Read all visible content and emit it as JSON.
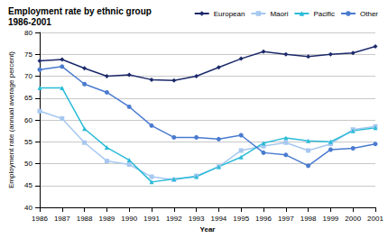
{
  "chart_data": {
    "type": "line",
    "title": "Employment rate by ethnic group",
    "subtitle": "1986-2001",
    "x_label": "Year",
    "y_label": "Employment rate (annual average percent)",
    "categories": [
      "1986",
      "1987",
      "1988",
      "1989",
      "1990",
      "1991",
      "1992",
      "1993",
      "1994",
      "1995",
      "1996",
      "1997",
      "1998",
      "1999",
      "2000",
      "2001"
    ],
    "series": [
      {
        "name": "European",
        "color": "#1C2A6B",
        "marker": "diamond",
        "values": [
          73.5,
          73.8,
          71.8,
          70,
          70.3,
          69.2,
          69,
          70,
          72,
          74,
          75.6,
          75,
          74.5,
          75,
          75.3,
          76.8
        ]
      },
      {
        "name": "Maori",
        "color": "#A6C8F0",
        "marker": "square",
        "values": [
          62,
          60.3,
          54.8,
          50.6,
          49.8,
          47,
          46.3,
          47.2,
          49.3,
          53,
          54,
          54.8,
          53,
          54.5,
          57.8,
          58.5
        ]
      },
      {
        "name": "Pacific",
        "color": "#2ABBD8",
        "marker": "triangle",
        "values": [
          67.3,
          67.3,
          58,
          53.7,
          50.8,
          45.8,
          46.5,
          47,
          49.3,
          51.5,
          54.7,
          55.9,
          55.2,
          55,
          57.5,
          58.2
        ]
      },
      {
        "name": "Other",
        "color": "#4A7BD0",
        "marker": "circle",
        "values": [
          71.5,
          72.2,
          68.2,
          66.3,
          63,
          58.7,
          56,
          56,
          55.6,
          56.5,
          52.5,
          52,
          49.5,
          53.2,
          53.5,
          54.5
        ]
      }
    ],
    "ylim": [
      40,
      80
    ],
    "yticks": [
      40,
      45,
      50,
      55,
      60,
      65,
      70,
      75,
      80
    ],
    "grid": true,
    "legend": "top-right"
  }
}
